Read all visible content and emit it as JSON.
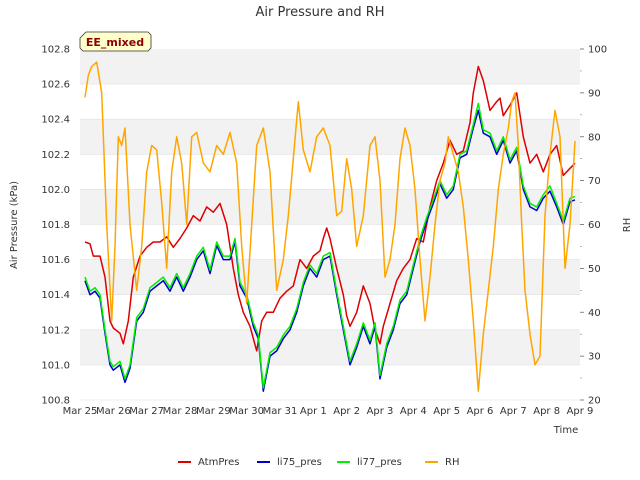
{
  "chart_data": {
    "type": "line",
    "title": "Air Pressure and RH",
    "xlabel": "Time",
    "ylabel": "Air Pressure (kPa)",
    "y2label": "RH",
    "badge": "EE_mixed",
    "ylim": [
      100.8,
      102.8
    ],
    "y2lim": [
      20,
      100
    ],
    "yticks": [
      "100.8",
      "101.0",
      "101.2",
      "101.4",
      "101.6",
      "101.8",
      "102.0",
      "102.2",
      "102.4",
      "102.6",
      "102.8"
    ],
    "y2ticks": [
      "20",
      "30",
      "40",
      "50",
      "60",
      "70",
      "80",
      "90",
      "100"
    ],
    "xticks": [
      "Mar 25",
      "Mar 26",
      "Mar 27",
      "Mar 28",
      "Mar 29",
      "Mar 30",
      "Mar 31",
      "Apr 1",
      "Apr 2",
      "Apr 3",
      "Apr 4",
      "Apr 5",
      "Apr 6",
      "Apr 7",
      "Apr 8",
      "Apr 9"
    ],
    "grid": "horizontal bands",
    "legend_position": "bottom-center",
    "series": [
      {
        "name": "AtmPres",
        "color": "#dd0000",
        "axis": "left",
        "x": [
          0.15,
          0.3,
          0.4,
          0.6,
          0.75,
          0.9,
          1.0,
          1.2,
          1.3,
          1.45,
          1.6,
          1.8,
          2.0,
          2.2,
          2.4,
          2.6,
          2.8,
          3.0,
          3.2,
          3.4,
          3.6,
          3.8,
          4.0,
          4.2,
          4.4,
          4.6,
          4.75,
          4.9,
          5.1,
          5.3,
          5.45,
          5.6,
          5.8,
          6.0,
          6.2,
          6.4,
          6.6,
          6.8,
          7.0,
          7.2,
          7.3,
          7.4,
          7.5,
          7.7,
          7.9,
          8.0,
          8.1,
          8.3,
          8.5,
          8.7,
          8.85,
          9.0,
          9.1,
          9.3,
          9.5,
          9.7,
          9.9,
          10.1,
          10.3,
          10.5,
          10.7,
          10.9,
          11.1,
          11.3,
          11.5,
          11.7,
          11.8,
          11.95,
          12.1,
          12.3,
          12.5,
          12.6,
          12.7,
          12.9,
          13.1,
          13.3,
          13.5,
          13.7,
          13.9,
          14.1,
          14.3,
          14.5,
          14.7,
          14.85
        ],
        "values": [
          101.7,
          101.69,
          101.62,
          101.62,
          101.5,
          101.25,
          101.21,
          101.18,
          101.12,
          101.25,
          101.5,
          101.62,
          101.67,
          101.7,
          101.7,
          101.73,
          101.67,
          101.72,
          101.78,
          101.85,
          101.82,
          101.9,
          101.87,
          101.92,
          101.8,
          101.55,
          101.4,
          101.3,
          101.22,
          101.08,
          101.25,
          101.3,
          101.3,
          101.38,
          101.42,
          101.45,
          101.6,
          101.55,
          101.62,
          101.65,
          101.72,
          101.78,
          101.72,
          101.55,
          101.4,
          101.28,
          101.22,
          101.3,
          101.45,
          101.35,
          101.2,
          101.12,
          101.22,
          101.35,
          101.48,
          101.55,
          101.6,
          101.72,
          101.7,
          101.9,
          102.05,
          102.15,
          102.28,
          102.2,
          102.22,
          102.38,
          102.55,
          102.7,
          102.62,
          102.45,
          102.5,
          102.52,
          102.42,
          102.48,
          102.55,
          102.3,
          102.15,
          102.2,
          102.1,
          102.2,
          102.25,
          102.08,
          102.12,
          102.15
        ]
      },
      {
        "name": "li75_pres",
        "color": "#0000cc",
        "axis": "left",
        "x": [
          0.15,
          0.3,
          0.45,
          0.6,
          0.75,
          0.9,
          1.0,
          1.2,
          1.35,
          1.5,
          1.7,
          1.9,
          2.1,
          2.3,
          2.5,
          2.7,
          2.9,
          3.1,
          3.3,
          3.5,
          3.7,
          3.9,
          4.1,
          4.3,
          4.5,
          4.65,
          4.8,
          5.0,
          5.2,
          5.35,
          5.5,
          5.7,
          5.9,
          6.1,
          6.3,
          6.5,
          6.7,
          6.9,
          7.1,
          7.3,
          7.5,
          7.7,
          7.9,
          8.1,
          8.3,
          8.5,
          8.7,
          8.85,
          9.0,
          9.2,
          9.4,
          9.6,
          9.8,
          10.0,
          10.2,
          10.4,
          10.6,
          10.8,
          11.0,
          11.2,
          11.4,
          11.6,
          11.8,
          11.95,
          12.1,
          12.3,
          12.5,
          12.7,
          12.9,
          13.1,
          13.3,
          13.5,
          13.7,
          13.9,
          14.1,
          14.3,
          14.5,
          14.7,
          14.85
        ],
        "values": [
          101.48,
          101.4,
          101.42,
          101.38,
          101.18,
          101.0,
          100.97,
          101.0,
          100.9,
          100.98,
          101.25,
          101.3,
          101.42,
          101.45,
          101.48,
          101.42,
          101.5,
          101.42,
          101.5,
          101.6,
          101.65,
          101.52,
          101.68,
          101.6,
          101.6,
          101.7,
          101.45,
          101.38,
          101.22,
          101.15,
          100.85,
          101.05,
          101.08,
          101.15,
          101.2,
          101.3,
          101.45,
          101.55,
          101.5,
          101.6,
          101.62,
          101.4,
          101.2,
          101.0,
          101.1,
          101.22,
          101.12,
          101.22,
          100.92,
          101.1,
          101.2,
          101.35,
          101.4,
          101.55,
          101.7,
          101.82,
          101.92,
          102.03,
          101.95,
          102.0,
          102.18,
          102.2,
          102.35,
          102.45,
          102.32,
          102.3,
          102.2,
          102.28,
          102.15,
          102.22,
          102.0,
          101.9,
          101.88,
          101.95,
          101.99,
          101.9,
          101.8,
          101.93,
          101.94
        ]
      },
      {
        "name": "li77_pres",
        "color": "#00ee00",
        "axis": "left",
        "x": [
          0.15,
          0.3,
          0.45,
          0.6,
          0.75,
          0.9,
          1.0,
          1.2,
          1.35,
          1.5,
          1.7,
          1.9,
          2.1,
          2.3,
          2.5,
          2.7,
          2.9,
          3.1,
          3.3,
          3.5,
          3.7,
          3.9,
          4.1,
          4.3,
          4.5,
          4.65,
          4.8,
          5.0,
          5.2,
          5.35,
          5.5,
          5.7,
          5.9,
          6.1,
          6.3,
          6.5,
          6.7,
          6.9,
          7.1,
          7.3,
          7.5,
          7.7,
          7.9,
          8.1,
          8.3,
          8.5,
          8.7,
          8.85,
          9.0,
          9.2,
          9.4,
          9.6,
          9.8,
          10.0,
          10.2,
          10.4,
          10.6,
          10.8,
          11.0,
          11.2,
          11.4,
          11.6,
          11.8,
          11.95,
          12.1,
          12.3,
          12.5,
          12.7,
          12.9,
          13.1,
          13.3,
          13.5,
          13.7,
          13.9,
          14.1,
          14.3,
          14.5,
          14.7,
          14.85
        ],
        "values": [
          101.5,
          101.42,
          101.44,
          101.4,
          101.2,
          101.02,
          100.99,
          101.02,
          100.92,
          101.0,
          101.27,
          101.32,
          101.44,
          101.47,
          101.5,
          101.44,
          101.52,
          101.44,
          101.52,
          101.62,
          101.67,
          101.54,
          101.7,
          101.62,
          101.62,
          101.72,
          101.47,
          101.4,
          101.24,
          101.17,
          100.87,
          101.07,
          101.1,
          101.17,
          101.22,
          101.32,
          101.47,
          101.57,
          101.52,
          101.62,
          101.64,
          101.42,
          101.22,
          101.02,
          101.12,
          101.24,
          101.14,
          101.24,
          100.94,
          101.12,
          101.22,
          101.37,
          101.42,
          101.57,
          101.72,
          101.84,
          101.94,
          102.05,
          101.97,
          102.02,
          102.2,
          102.22,
          102.37,
          102.49,
          102.34,
          102.32,
          102.22,
          102.3,
          102.17,
          102.24,
          102.02,
          101.92,
          101.9,
          101.97,
          102.02,
          101.92,
          101.82,
          101.95,
          101.96
        ]
      },
      {
        "name": "RH",
        "color": "#ffa500",
        "axis": "right",
        "x": [
          0.15,
          0.25,
          0.35,
          0.5,
          0.65,
          0.8,
          0.95,
          1.05,
          1.15,
          1.25,
          1.35,
          1.5,
          1.7,
          1.85,
          2.0,
          2.15,
          2.3,
          2.45,
          2.6,
          2.75,
          2.9,
          3.05,
          3.2,
          3.35,
          3.5,
          3.7,
          3.9,
          4.1,
          4.3,
          4.5,
          4.7,
          4.85,
          5.0,
          5.15,
          5.3,
          5.5,
          5.7,
          5.9,
          6.1,
          6.25,
          6.4,
          6.55,
          6.7,
          6.9,
          7.1,
          7.3,
          7.5,
          7.7,
          7.85,
          8.0,
          8.15,
          8.3,
          8.5,
          8.7,
          8.85,
          9.0,
          9.15,
          9.3,
          9.45,
          9.6,
          9.75,
          9.9,
          10.05,
          10.2,
          10.35,
          10.5,
          10.65,
          10.8,
          10.95,
          11.05,
          11.2,
          11.35,
          11.5,
          11.65,
          11.8,
          11.95,
          12.1,
          12.25,
          12.4,
          12.55,
          12.7,
          12.85,
          12.95,
          13.05,
          13.15,
          13.25,
          13.35,
          13.5,
          13.65,
          13.8,
          13.95,
          14.1,
          14.25,
          14.4,
          14.55,
          14.7,
          14.85
        ],
        "values": [
          89,
          94,
          96,
          97,
          90,
          60,
          38,
          55,
          80,
          78,
          82,
          60,
          45,
          55,
          72,
          78,
          77,
          65,
          50,
          72,
          80,
          74,
          60,
          80,
          81,
          74,
          72,
          78,
          76,
          81,
          74,
          55,
          42,
          60,
          78,
          82,
          72,
          45,
          52,
          62,
          75,
          88,
          77,
          72,
          80,
          82,
          78,
          62,
          63,
          75,
          68,
          55,
          62,
          78,
          80,
          70,
          48,
          52,
          60,
          75,
          82,
          78,
          68,
          52,
          38,
          48,
          60,
          70,
          74,
          80,
          76,
          72,
          64,
          52,
          38,
          22,
          35,
          45,
          55,
          68,
          76,
          82,
          88,
          90,
          78,
          60,
          45,
          35,
          28,
          30,
          62,
          76,
          86,
          80,
          50,
          60,
          79
        ]
      }
    ]
  }
}
